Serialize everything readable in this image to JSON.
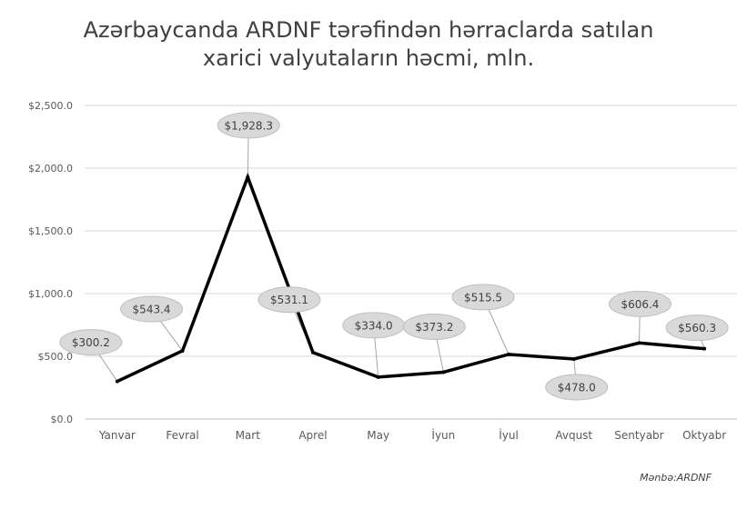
{
  "chart_data": {
    "type": "line",
    "title_lines": [
      "Azərbaycanda ARDNF tərəfindən hərraclarda satılan",
      "xarici valyutaların həcmi, mln."
    ],
    "categories": [
      "Yanvar",
      "Fevral",
      "Mart",
      "Aprel",
      "May",
      "İyun",
      "İyul",
      "Avqust",
      "Sentyabr",
      "Oktyabr"
    ],
    "series": [
      {
        "values": [
          300.2,
          543.4,
          1928.3,
          531.1,
          334.0,
          373.2,
          515.5,
          478.0,
          606.4,
          560.3
        ],
        "labels": [
          "$300.2",
          "$543.4",
          "$1,928.3",
          "$531.1",
          "$334.0",
          "$373.2",
          "$515.5",
          "$478.0",
          "$606.4",
          "$560.3"
        ],
        "color": "#000000"
      }
    ],
    "y_ticks": [
      {
        "value": 0,
        "label": "$0.0"
      },
      {
        "value": 500,
        "label": "$500.0"
      },
      {
        "value": 1000,
        "label": "$1,000.0"
      },
      {
        "value": 1500,
        "label": "$1,500.0"
      },
      {
        "value": 2000,
        "label": "$2,000.0"
      },
      {
        "value": 2500,
        "label": "$2,500.0"
      }
    ],
    "ylim": [
      0,
      2500
    ],
    "grid": true,
    "callout_color": "#d9d9d9",
    "source": "Mənbə:ARDNF"
  }
}
